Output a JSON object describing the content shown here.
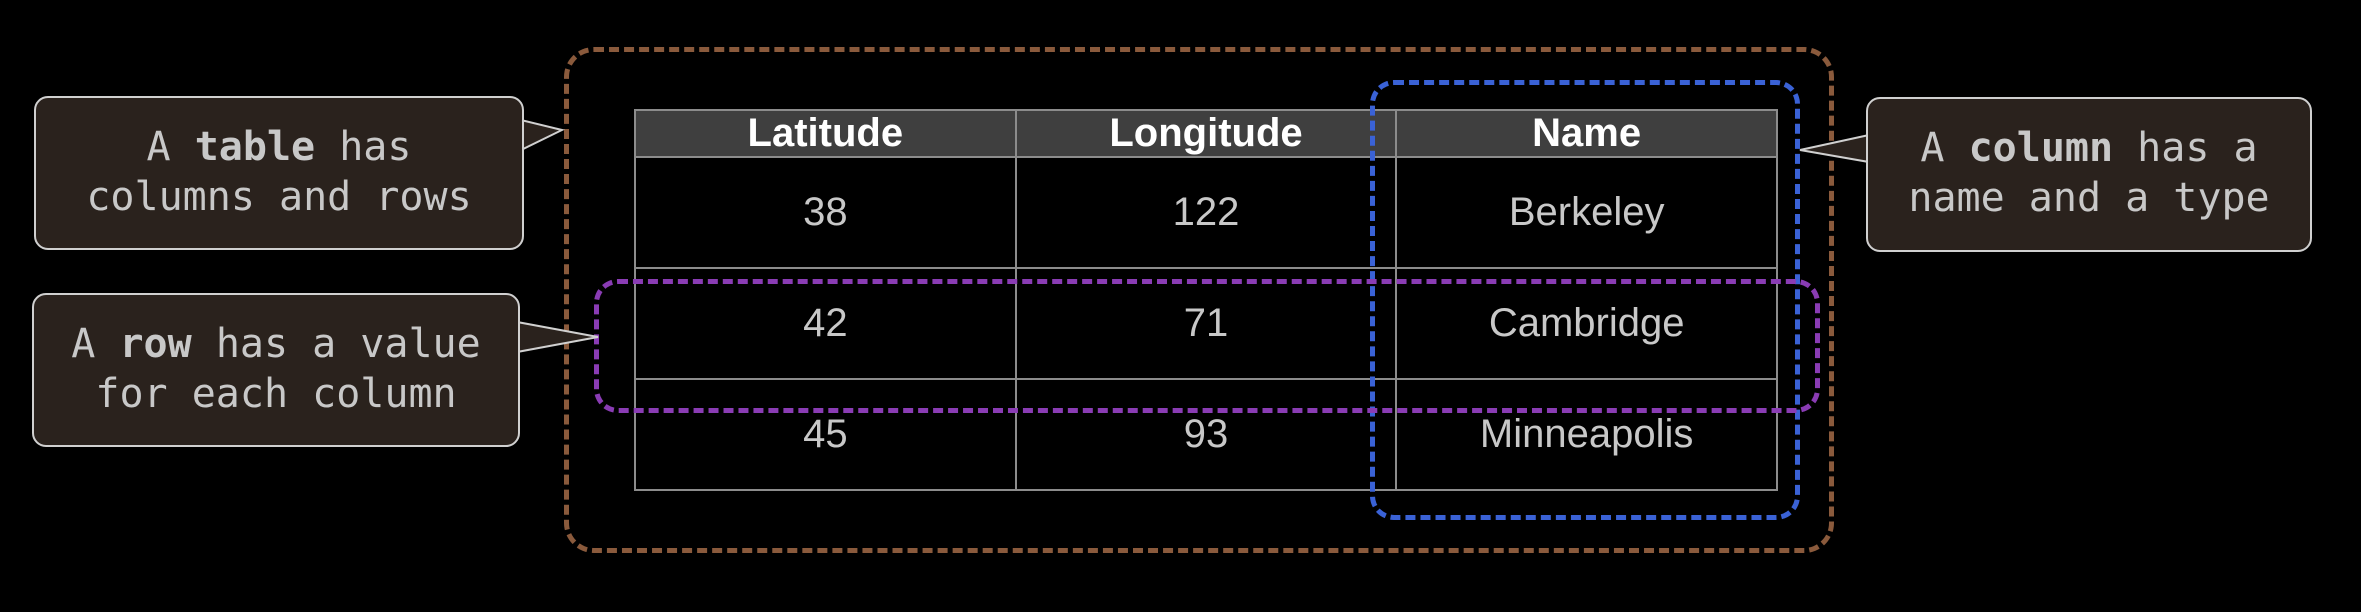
{
  "table": {
    "headers": [
      "Latitude",
      "Longitude",
      "Name"
    ],
    "rows": [
      [
        "38",
        "122",
        "Berkeley"
      ],
      [
        "42",
        "71",
        "Cambridge"
      ],
      [
        "45",
        "93",
        "Minneapolis"
      ]
    ]
  },
  "callouts": {
    "table": {
      "prefix": "A",
      "bold": "table",
      "suffix": "has",
      "line2": "columns and rows"
    },
    "row": {
      "prefix": "A",
      "bold": "row",
      "suffix": "has a value",
      "line2": "for each column"
    },
    "column": {
      "prefix": "A",
      "bold": "column",
      "suffix": "has a",
      "line2": "name and a type"
    }
  },
  "colors": {
    "table_frame": "#8a5a3c",
    "column_frame": "#3a62d6",
    "row_frame": "#8a3cb4",
    "callout_bg": "#2a221d",
    "header_bg": "#3f3f3f"
  }
}
